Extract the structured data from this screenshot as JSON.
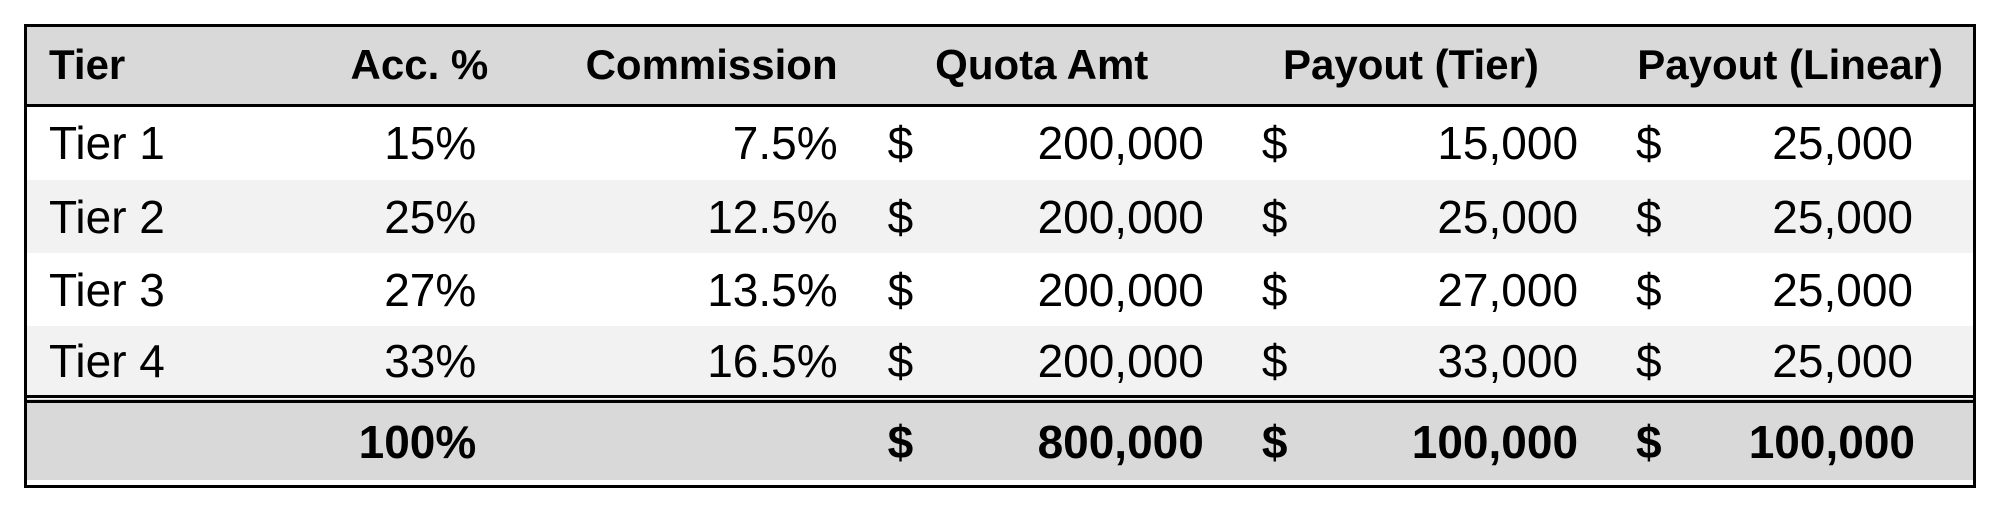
{
  "columns": {
    "tier": "Tier",
    "acc_pct": "Acc. %",
    "commission": "Commission",
    "quota_amt": "Quota Amt",
    "payout_tier": "Payout (Tier)",
    "payout_linear": "Payout (Linear)"
  },
  "rows": [
    {
      "tier": "Tier 1",
      "acc_pct": "15%",
      "commission": "7.5%",
      "quota_sym": "$",
      "quota_amt": "200,000",
      "payout_tier_sym": "$",
      "payout_tier": "15,000",
      "payout_linear_sym": "$",
      "payout_linear": "25,000"
    },
    {
      "tier": "Tier 2",
      "acc_pct": "25%",
      "commission": "12.5%",
      "quota_sym": "$",
      "quota_amt": "200,000",
      "payout_tier_sym": "$",
      "payout_tier": "25,000",
      "payout_linear_sym": "$",
      "payout_linear": "25,000"
    },
    {
      "tier": "Tier 3",
      "acc_pct": "27%",
      "commission": "13.5%",
      "quota_sym": "$",
      "quota_amt": "200,000",
      "payout_tier_sym": "$",
      "payout_tier": "27,000",
      "payout_linear_sym": "$",
      "payout_linear": "25,000"
    },
    {
      "tier": "Tier 4",
      "acc_pct": "33%",
      "commission": "16.5%",
      "quota_sym": "$",
      "quota_amt": "200,000",
      "payout_tier_sym": "$",
      "payout_tier": "33,000",
      "payout_linear_sym": "$",
      "payout_linear": "25,000"
    }
  ],
  "totals": {
    "acc_pct": "100%",
    "quota_sym": "$",
    "quota_amt": "800,000",
    "payout_tier_sym": "$",
    "payout_tier": "100,000",
    "payout_linear_sym": "$",
    "payout_linear": "100,000"
  },
  "colors": {
    "header_bg": "#d9d9d9",
    "stripe_bg": "#f2f2f2",
    "border": "#000000"
  }
}
